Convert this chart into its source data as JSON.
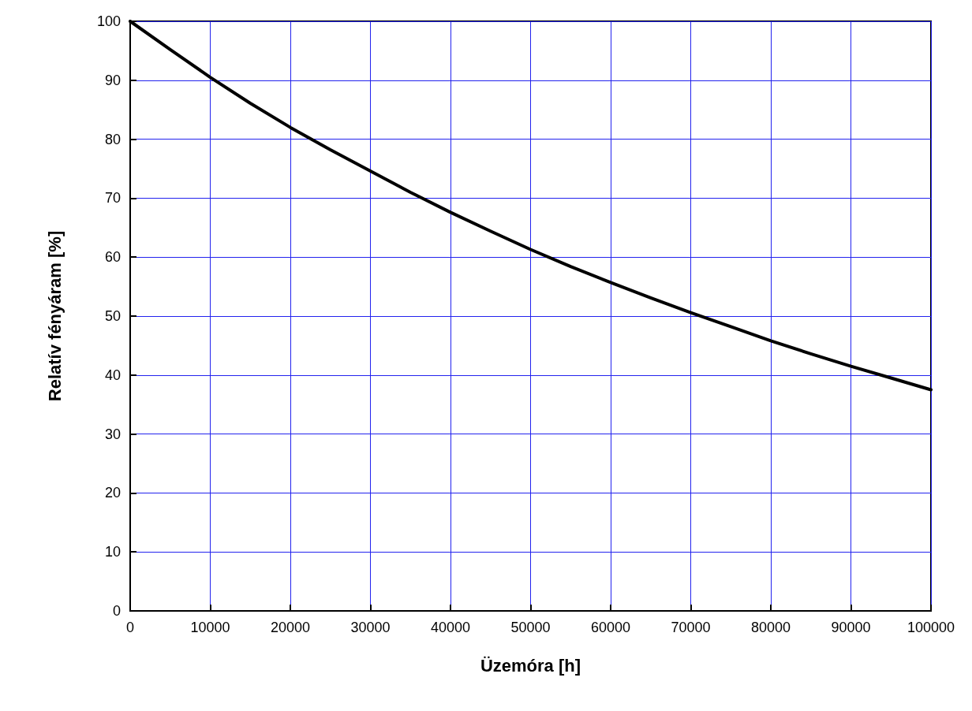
{
  "chart_data": {
    "type": "line",
    "xlabel": "Üzemóra [h]",
    "ylabel": "Relatív fényáram [%]",
    "x": [
      0,
      5000,
      10000,
      15000,
      20000,
      25000,
      30000,
      35000,
      40000,
      45000,
      50000,
      55000,
      60000,
      65000,
      70000,
      75000,
      80000,
      85000,
      90000,
      95000,
      100000
    ],
    "series": [
      {
        "color": "#000000",
        "values": [
          100,
          95.2,
          90.5,
          86.1,
          82,
          78.2,
          74.6,
          71,
          67.6,
          64.4,
          61.3,
          58.4,
          55.7,
          53.1,
          50.6,
          48.2,
          45.8,
          43.6,
          41.5,
          39.5,
          37.5
        ]
      }
    ],
    "xlim": [
      0,
      100000
    ],
    "xticks": [
      0,
      10000,
      20000,
      30000,
      40000,
      50000,
      60000,
      70000,
      80000,
      90000,
      100000
    ],
    "ylim": [
      0,
      100
    ],
    "yticks": [
      0,
      10,
      20,
      30,
      40,
      50,
      60,
      70,
      80,
      90,
      100
    ],
    "grid": true,
    "marker": "none",
    "line_style": "solid"
  }
}
